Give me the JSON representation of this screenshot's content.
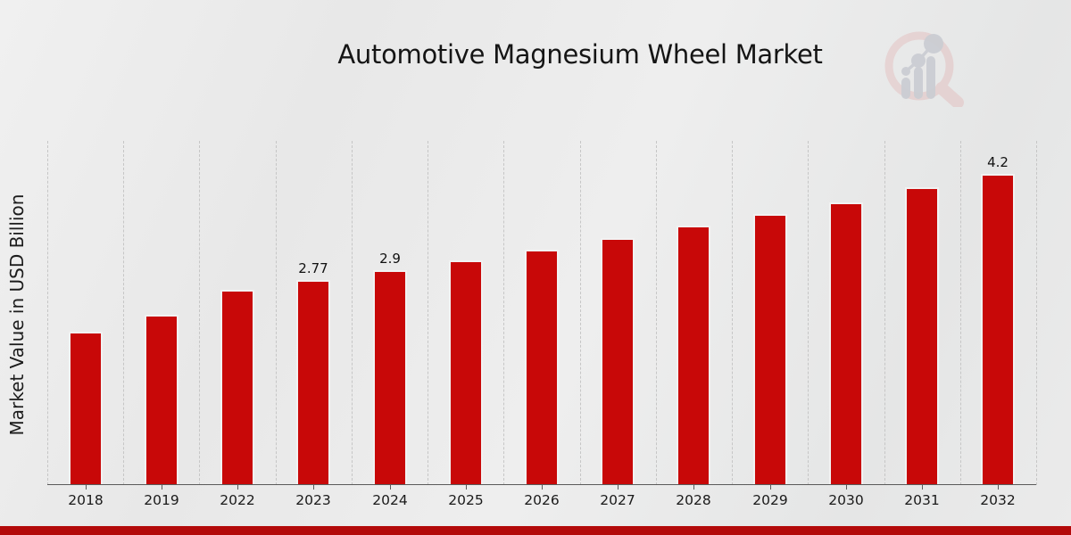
{
  "page": {
    "footer_bar_color": "#b30a0a",
    "logo": {
      "name": "magnifier-bar-chart-logo",
      "ring_color": "#e4caca",
      "bars_color": "#cbcdd3"
    }
  },
  "chart_data": {
    "type": "bar",
    "title": "Automotive Magnesium Wheel Market",
    "ylabel": "Market Value in USD Billion",
    "xlabel": "",
    "categories": [
      "2018",
      "2019",
      "2022",
      "2023",
      "2024",
      "2025",
      "2026",
      "2027",
      "2028",
      "2029",
      "2030",
      "2031",
      "2032"
    ],
    "values": [
      2.07,
      2.3,
      2.64,
      2.77,
      2.9,
      3.04,
      3.18,
      3.34,
      3.5,
      3.66,
      3.82,
      4.02,
      4.2
    ],
    "bar_labels": [
      "",
      "",
      "",
      "2.77",
      "2.9",
      "",
      "",
      "",
      "",
      "",
      "",
      "",
      "4.2"
    ],
    "ylim": [
      0,
      4.65
    ],
    "bar_color": "#c80808",
    "grid": "vertical-dashed",
    "legend": "none"
  }
}
